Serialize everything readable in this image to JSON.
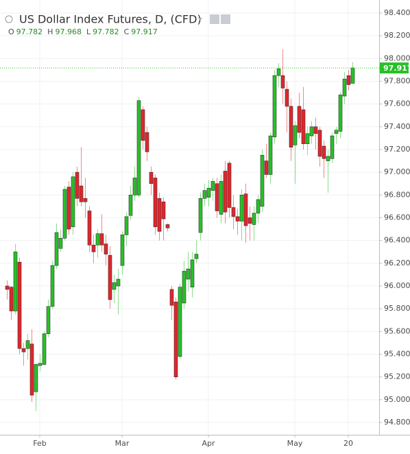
{
  "chart_data": {
    "type": "candlestick",
    "title": "US Dollar Index Futures, D, (CFD)",
    "ohlc_labels": [
      "O",
      "H",
      "L",
      "C"
    ],
    "up_color": "#26c126",
    "down_color": "#e0262c",
    "grid": true,
    "categories": [
      null,
      null,
      null,
      null,
      null,
      null,
      null,
      null,
      "Feb",
      null,
      null,
      null,
      null,
      null,
      null,
      null,
      null,
      null,
      null,
      null,
      null,
      null,
      null,
      null,
      null,
      null,
      null,
      null,
      "Mar",
      null,
      null,
      null,
      null,
      null,
      null,
      null,
      null,
      null,
      null,
      null,
      null,
      null,
      null,
      null,
      null,
      null,
      null,
      null,
      null,
      "Apr",
      null,
      null,
      null,
      null,
      null,
      null,
      null,
      null,
      null,
      null,
      null,
      null,
      null,
      null,
      null,
      null,
      null,
      null,
      null,
      null,
      "May",
      null,
      null,
      null,
      null,
      null,
      null,
      null,
      null,
      null,
      null,
      null,
      null,
      "20",
      null
    ],
    "open": [
      96.0,
      95.99,
      95.78,
      96.21,
      95.45,
      95.45,
      95.49,
      95.07,
      95.3,
      95.31,
      95.58,
      95.82,
      96.18,
      96.33,
      96.42,
      96.87,
      96.52,
      97.0,
      96.88,
      96.77,
      96.66,
      96.36,
      96.36,
      96.46,
      96.37,
      96.27,
      95.97,
      96.0,
      96.18,
      96.45,
      96.62,
      96.8,
      96.8,
      97.55,
      97.35,
      97.0,
      96.95,
      96.77,
      96.74,
      96.54,
      95.97,
      95.86,
      95.38,
      95.85,
      96.06,
      95.99,
      96.24,
      96.47,
      96.77,
      96.78,
      96.84,
      96.9,
      96.63,
      97.01,
      97.08,
      96.69,
      96.61,
      96.57,
      96.81,
      96.6,
      96.54,
      96.64,
      96.7,
      97.1,
      96.98,
      97.31,
      97.85,
      97.85,
      97.73,
      97.58,
      97.24,
      97.58,
      97.55,
      97.25,
      97.32,
      97.4,
      97.37,
      97.23,
      97.1,
      97.12,
      97.34,
      97.36,
      97.67,
      97.85,
      97.782
    ],
    "high": [
      96.05,
      96.0,
      96.37,
      96.25,
      95.5,
      95.58,
      95.62,
      95.32,
      95.4,
      95.6,
      95.88,
      96.22,
      96.55,
      96.5,
      96.88,
      96.92,
      97.0,
      97.05,
      97.22,
      96.95,
      96.7,
      96.45,
      96.5,
      96.63,
      96.45,
      96.35,
      96.1,
      96.15,
      96.48,
      96.65,
      96.88,
      97.05,
      97.66,
      97.58,
      97.4,
      97.05,
      96.98,
      96.82,
      96.78,
      96.55,
      96.0,
      95.9,
      96.02,
      96.22,
      96.3,
      96.3,
      96.4,
      96.82,
      96.9,
      96.93,
      96.95,
      96.95,
      96.98,
      97.1,
      97.1,
      96.8,
      96.68,
      96.85,
      96.9,
      96.7,
      96.7,
      96.8,
      97.2,
      97.25,
      97.35,
      97.9,
      97.96,
      98.08,
      97.8,
      97.65,
      97.45,
      97.7,
      97.75,
      97.4,
      97.45,
      97.48,
      97.4,
      97.28,
      97.2,
      97.35,
      97.4,
      97.7,
      97.88,
      97.9,
      97.968
    ],
    "low": [
      95.88,
      95.7,
      95.75,
      95.4,
      95.3,
      95.35,
      94.98,
      94.9,
      95.25,
      95.3,
      95.55,
      95.8,
      96.15,
      96.3,
      96.4,
      96.45,
      96.45,
      96.7,
      96.7,
      96.6,
      96.3,
      96.2,
      96.25,
      96.3,
      96.18,
      95.8,
      95.85,
      95.75,
      96.1,
      96.35,
      96.58,
      96.75,
      96.78,
      97.2,
      97.1,
      96.8,
      96.45,
      96.4,
      96.4,
      96.48,
      95.7,
      95.18,
      95.36,
      95.8,
      95.95,
      95.9,
      96.2,
      96.4,
      96.7,
      96.7,
      96.75,
      96.6,
      96.55,
      96.55,
      96.6,
      96.5,
      96.45,
      96.4,
      96.38,
      96.4,
      96.4,
      96.55,
      96.65,
      96.95,
      96.9,
      97.25,
      97.75,
      97.6,
      97.35,
      97.1,
      96.9,
      97.3,
      97.2,
      97.15,
      97.25,
      97.2,
      97.05,
      96.95,
      96.82,
      97.08,
      97.25,
      97.3,
      97.6,
      97.72,
      97.782
    ],
    "close": [
      95.97,
      95.78,
      96.3,
      95.45,
      95.42,
      95.52,
      95.04,
      95.31,
      95.32,
      95.58,
      95.82,
      96.18,
      96.47,
      96.42,
      96.85,
      96.5,
      96.96,
      96.77,
      96.74,
      96.74,
      96.36,
      96.3,
      96.46,
      96.36,
      96.28,
      95.88,
      96.03,
      96.06,
      96.45,
      96.61,
      96.8,
      96.95,
      97.63,
      97.28,
      97.18,
      96.9,
      96.52,
      96.48,
      96.59,
      96.51,
      95.83,
      95.2,
      95.99,
      96.13,
      96.15,
      96.23,
      96.28,
      96.77,
      96.84,
      96.86,
      96.92,
      96.66,
      96.92,
      96.65,
      96.69,
      96.61,
      96.57,
      96.8,
      96.53,
      96.55,
      96.64,
      96.76,
      97.15,
      96.98,
      97.32,
      97.85,
      97.91,
      97.74,
      97.58,
      97.22,
      97.41,
      97.35,
      97.25,
      97.34,
      97.4,
      97.34,
      97.14,
      97.12,
      97.14,
      97.32,
      97.37,
      97.68,
      97.82,
      97.77,
      97.917
    ],
    "ylim": [
      94.7,
      98.5
    ],
    "yticks": [
      {
        "value": 98.4,
        "label": "98.400"
      },
      {
        "value": 98.2,
        "label": "98.200"
      },
      {
        "value": 98.0,
        "label": "98.000"
      },
      {
        "value": 97.8,
        "label": "97.800"
      },
      {
        "value": 97.6,
        "label": "97.600"
      },
      {
        "value": 97.4,
        "label": "97.400"
      },
      {
        "value": 97.2,
        "label": "97.200"
      },
      {
        "value": 97.0,
        "label": "97.000"
      },
      {
        "value": 96.8,
        "label": "96.800"
      },
      {
        "value": 96.6,
        "label": "96.600"
      },
      {
        "value": 96.4,
        "label": "96.400"
      },
      {
        "value": 96.2,
        "label": "96.200"
      },
      {
        "value": 96.0,
        "label": "96.000"
      },
      {
        "value": 95.8,
        "label": "95.800"
      },
      {
        "value": 95.6,
        "label": "95.600"
      },
      {
        "value": 95.4,
        "label": "95.400"
      },
      {
        "value": 95.2,
        "label": "95.200"
      },
      {
        "value": 95.0,
        "label": "95.000"
      },
      {
        "value": 94.8,
        "label": "94.800"
      }
    ]
  }
}
